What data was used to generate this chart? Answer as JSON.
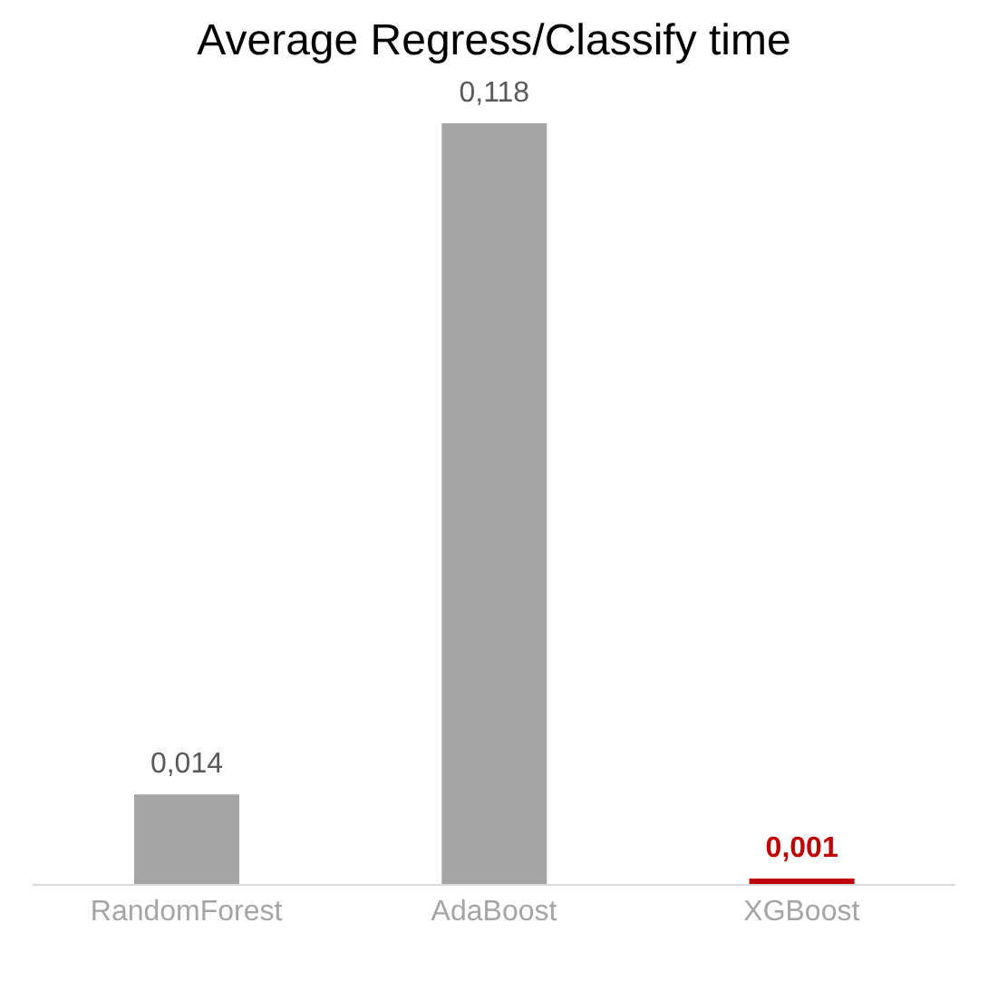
{
  "chart_data": {
    "type": "bar",
    "title": "Average Regress/Classify time",
    "categories": [
      "RandomForest",
      "AdaBoost",
      "XGBoost"
    ],
    "values": [
      0.014,
      0.118,
      0.001
    ],
    "colors": [
      "#a5a5a5",
      "#a5a5a5",
      "#c00000"
    ],
    "value_labels": [
      "0,014",
      "0,118",
      "0,001"
    ]
  }
}
